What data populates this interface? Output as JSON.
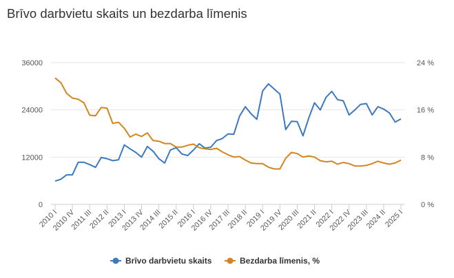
{
  "chart_data": {
    "type": "line",
    "title": "Brīvo darbvietu skaits un bezdarba līmenis",
    "x": [
      "2010 I",
      "2010 II",
      "2010 III",
      "2010 IV",
      "2011 I",
      "2011 II",
      "2011 III",
      "2011 IV",
      "2012 I",
      "2012 II",
      "2012 III",
      "2012 IV",
      "2013 I",
      "2013 II",
      "2013 III",
      "2013 IV",
      "2014 I",
      "2014 II",
      "2014 III",
      "2014 IV",
      "2015 I",
      "2015 II",
      "2015 III",
      "2015 IV",
      "2016 I",
      "2016 II",
      "2016 III",
      "2016 IV",
      "2017 I",
      "2017 II",
      "2017 III",
      "2017 IV",
      "2018 I",
      "2018 II",
      "2018 III",
      "2018 IV",
      "2019 I",
      "2019 II",
      "2019 III",
      "2019 IV",
      "2020 I",
      "2020 II",
      "2020 III",
      "2020 IV",
      "2021 I",
      "2021 II",
      "2021 III",
      "2021 IV",
      "2022 I",
      "2022 II",
      "2022 III",
      "2022 IV",
      "2023 I",
      "2023 II",
      "2023 III",
      "2023 IV",
      "2024 I",
      "2024 II",
      "2024 III",
      "2024 IV",
      "2025 I"
    ],
    "x_tick_labels": [
      "2010 I",
      "2010 IV",
      "2011 III",
      "2012 II",
      "2013 I",
      "2013 IV",
      "2014 III",
      "2015 II",
      "2016 I",
      "2016 IV",
      "2017 III",
      "2018 II",
      "2019 I",
      "2019 IV",
      "2020 III",
      "2021 II",
      "2022 I",
      "2022 IV",
      "2023 III",
      "2024 II",
      "2025 I"
    ],
    "y_left": {
      "ticks": [
        "0",
        "12000",
        "24000",
        "36000"
      ],
      "range": [
        0,
        36000
      ]
    },
    "y_right": {
      "ticks": [
        "0 %",
        "8 %",
        "16 %",
        "24 %"
      ],
      "range": [
        0,
        24
      ]
    },
    "series": [
      {
        "name": "Brīvo darbvietu skaits",
        "axis": "left",
        "color": "#3a78c0",
        "values": [
          5900,
          6400,
          7500,
          7500,
          10700,
          10700,
          10100,
          9400,
          11900,
          11600,
          11100,
          11300,
          15100,
          14100,
          13200,
          12000,
          14700,
          13500,
          11600,
          10500,
          13800,
          14400,
          12800,
          12400,
          13800,
          15400,
          14300,
          14500,
          16200,
          16700,
          17900,
          17800,
          22400,
          24800,
          23000,
          21600,
          28800,
          30600,
          29300,
          28000,
          19000,
          21100,
          21000,
          17400,
          21900,
          25800,
          24000,
          27200,
          28700,
          26600,
          26300,
          22700,
          24000,
          25400,
          25600,
          22700,
          24800,
          24200,
          23200,
          20900,
          21700
        ]
      },
      {
        "name": "Bezdarba līmenis, %",
        "axis": "right",
        "color": "#d4841e",
        "values": [
          21.4,
          20.6,
          18.8,
          18.0,
          17.8,
          17.2,
          15.1,
          15.0,
          16.4,
          16.3,
          13.7,
          13.9,
          12.9,
          11.4,
          11.9,
          11.5,
          12.1,
          10.8,
          10.7,
          10.3,
          10.3,
          9.7,
          9.7,
          10.0,
          10.2,
          9.6,
          9.4,
          9.3,
          9.5,
          8.9,
          8.4,
          8.0,
          8.1,
          7.5,
          7.0,
          6.9,
          6.9,
          6.3,
          6.0,
          6.0,
          7.8,
          8.8,
          8.6,
          8.0,
          8.2,
          8.0,
          7.4,
          7.2,
          7.3,
          6.8,
          7.1,
          6.9,
          6.5,
          6.5,
          6.6,
          6.9,
          7.3,
          7.0,
          6.8,
          7.0,
          7.5
        ]
      }
    ],
    "legend": "bottom-center",
    "grid": true
  }
}
